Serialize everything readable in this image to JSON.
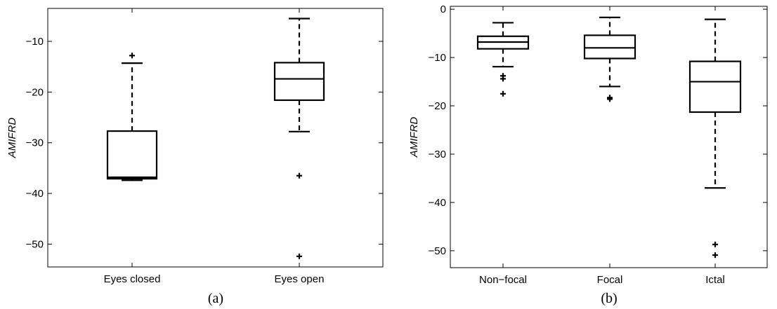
{
  "chart_data": [
    {
      "type": "boxplot",
      "caption": "(a)",
      "ylabel": "AMIFRD",
      "ylim": [
        -54.5,
        -3.5
      ],
      "yticks": [
        -10,
        -20,
        -30,
        -40,
        -50
      ],
      "categories": [
        "Eyes closed",
        "Eyes open"
      ],
      "boxes": [
        {
          "whisker_low": -37.4,
          "q1": -37.1,
          "median": -36.8,
          "q3": -27.7,
          "whisker_high": -14.3,
          "outliers": [
            -12.8
          ]
        },
        {
          "whisker_low": -27.8,
          "q1": -21.6,
          "median": -17.4,
          "q3": -14.2,
          "whisker_high": -5.5,
          "outliers": [
            -36.5,
            -52.4
          ]
        }
      ]
    },
    {
      "type": "boxplot",
      "caption": "(b)",
      "ylabel": "AMIFRD",
      "ylim": [
        -53.5,
        0.6
      ],
      "yticks": [
        0,
        -10,
        -20,
        -30,
        -40,
        -50
      ],
      "ytick_labels": [
        "0",
        "−10",
        "−20",
        "−30",
        "−40",
        "−50"
      ],
      "categories": [
        "Non−focal",
        "Focal",
        "Ictal"
      ],
      "boxes": [
        {
          "whisker_low": -11.9,
          "q1": -8.2,
          "median": -6.8,
          "q3": -5.6,
          "whisker_high": -2.8,
          "outliers": [
            -13.8,
            -14.4,
            -17.5
          ]
        },
        {
          "whisker_low": -16.0,
          "q1": -10.2,
          "median": -8.0,
          "q3": -5.4,
          "whisker_high": -1.7,
          "outliers": [
            -18.3,
            -18.6
          ]
        },
        {
          "whisker_low": -37.0,
          "q1": -21.3,
          "median": -15.0,
          "q3": -10.8,
          "whisker_high": -2.1,
          "outliers": [
            -48.7,
            -50.9
          ]
        }
      ]
    }
  ]
}
